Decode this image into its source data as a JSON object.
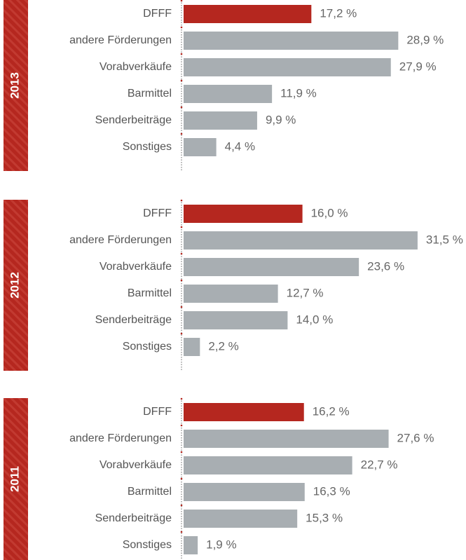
{
  "chart_data": [
    {
      "type": "bar",
      "title": "2013",
      "categories": [
        "DFFF",
        "andere Förderungen",
        "Vorabverkäufe",
        "Barmittel",
        "Senderbeiträge",
        "Sonstiges"
      ],
      "values": [
        17.2,
        28.9,
        27.9,
        11.9,
        9.9,
        4.4
      ],
      "value_labels": [
        "17,2 %",
        "28,9 %",
        "27,9 %",
        "11,9 %",
        "9,9 %",
        "4,4 %"
      ],
      "colors": [
        "#b5271f",
        "#a8aeb2",
        "#a8aeb2",
        "#a8aeb2",
        "#a8aeb2",
        "#a8aeb2"
      ]
    },
    {
      "type": "bar",
      "title": "2012",
      "categories": [
        "DFFF",
        "andere Förderungen",
        "Vorabverkäufe",
        "Barmittel",
        "Senderbeiträge",
        "Sonstiges"
      ],
      "values": [
        16.0,
        31.5,
        23.6,
        12.7,
        14.0,
        2.2
      ],
      "value_labels": [
        "16,0 %",
        "31,5 %",
        "23,6 %",
        "12,7 %",
        "14,0 %",
        "2,2 %"
      ],
      "colors": [
        "#b5271f",
        "#a8aeb2",
        "#a8aeb2",
        "#a8aeb2",
        "#a8aeb2",
        "#a8aeb2"
      ]
    },
    {
      "type": "bar",
      "title": "2011",
      "categories": [
        "DFFF",
        "andere Förderungen",
        "Vorabverkäufe",
        "Barmittel",
        "Senderbeiträge",
        "Sonstiges"
      ],
      "values": [
        16.2,
        27.6,
        22.7,
        16.3,
        15.3,
        1.9
      ],
      "value_labels": [
        "16,2 %",
        "27,6 %",
        "22,7 %",
        "16,3 %",
        "15,3 %",
        "1,9 %"
      ],
      "colors": [
        "#b5271f",
        "#a8aeb2",
        "#a8aeb2",
        "#a8aeb2",
        "#a8aeb2",
        "#a8aeb2"
      ]
    }
  ]
}
